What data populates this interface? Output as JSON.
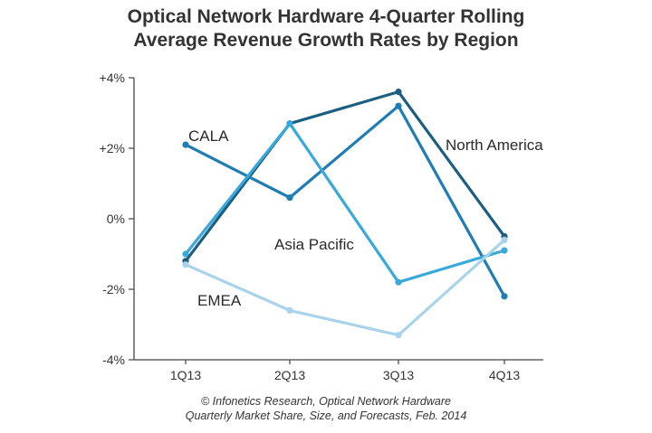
{
  "chart_data": {
    "type": "line",
    "title_lines": [
      "Optical Network Hardware 4-Quarter Rolling",
      "Average Revenue Growth Rates by Region"
    ],
    "categories": [
      "1Q13",
      "2Q13",
      "3Q13",
      "4Q13"
    ],
    "y_ticks": [
      "+4%",
      "+2%",
      "0%",
      "-2%",
      "-4%"
    ],
    "y_tick_values": [
      4,
      2,
      0,
      -2,
      -4
    ],
    "ylim": [
      -4,
      4
    ],
    "grid": false,
    "series": [
      {
        "name": "North America",
        "values": [
          -1.2,
          2.7,
          3.6,
          -0.5
        ],
        "color": "#1b5e82"
      },
      {
        "name": "CALA",
        "values": [
          2.1,
          0.6,
          3.2,
          -2.2
        ],
        "color": "#1f7db3"
      },
      {
        "name": "Asia Pacific",
        "values": [
          -1.0,
          2.7,
          -1.8,
          -0.9
        ],
        "color": "#3aa8d8"
      },
      {
        "name": "EMEA",
        "values": [
          -1.3,
          -2.6,
          -3.3,
          -0.6
        ],
        "color": "#a9d3ea"
      }
    ],
    "footer_lines": [
      "© Infonetics Research, Optical Network Hardware",
      "Quarterly Market Share, Size, and Forecasts, Feb. 2014"
    ]
  }
}
